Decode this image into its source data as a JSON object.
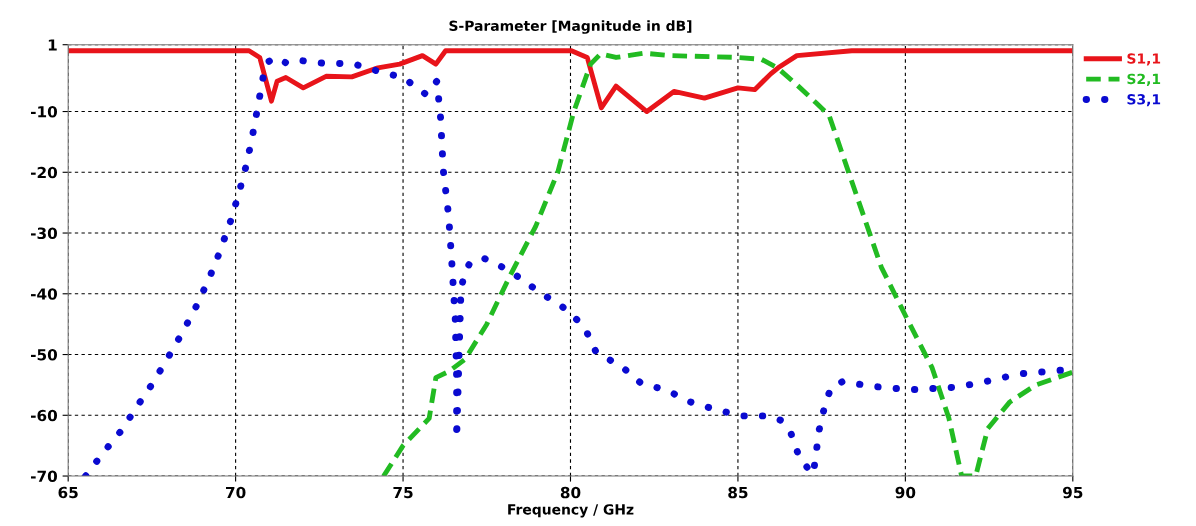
{
  "chart_data": {
    "type": "line",
    "title": "S-Parameter [Magnitude in dB]",
    "xlabel": "Frequency / GHz",
    "xlim": [
      65,
      95
    ],
    "xticks": [
      65,
      70,
      75,
      80,
      85,
      90,
      95
    ],
    "ylim": [
      -70,
      1
    ],
    "yticks": [
      1,
      -10,
      -20,
      -30,
      -40,
      -50,
      -60,
      -70
    ],
    "grid": true,
    "legend": "right",
    "marker": "none",
    "series": [
      {
        "name": "S1,1",
        "color": "#e8141a",
        "line_style": "solid",
        "x": [
          65,
          70.4,
          70.72,
          71.07,
          71.24,
          71.5,
          72.02,
          72.7,
          73.47,
          74.25,
          74.9,
          75.58,
          75.98,
          76.27,
          80.03,
          80.5,
          80.92,
          81.36,
          82.28,
          83.09,
          84.0,
          85.0,
          85.5,
          85.98,
          86.2,
          86.76,
          88.4,
          95
        ],
        "values": [
          0,
          0,
          -1.1,
          -8.3,
          -5,
          -4.4,
          -6.1,
          -4.2,
          -4.3,
          -2.8,
          -2.2,
          -0.8,
          -2.2,
          0,
          0,
          -1.1,
          -9.4,
          -5.8,
          -10,
          -6.7,
          -7.8,
          -6.1,
          -6.4,
          -3.8,
          -2.8,
          -0.8,
          0,
          0
        ]
      },
      {
        "name": "S2,1",
        "color": "#22bb22",
        "line_style": "dashed",
        "x": [
          74.42,
          75.0,
          75.78,
          75.98,
          76.36,
          76.85,
          77.5,
          78.18,
          78.96,
          79.62,
          80.1,
          80.6,
          80.9,
          81.36,
          82.2,
          83.0,
          85.0,
          85.7,
          86.18,
          86.76,
          87.34,
          87.72,
          88.58,
          89.28,
          90.03,
          90.8,
          91.3,
          91.68,
          92.1,
          92.46,
          93.12,
          93.9,
          95
        ],
        "values": [
          -70,
          -65,
          -60.5,
          -53.8,
          -52.8,
          -50.8,
          -45,
          -37.2,
          -28.9,
          -20,
          -10,
          -2.2,
          -0.5,
          -1.1,
          -0.4,
          -0.8,
          -1.1,
          -1.4,
          -2.8,
          -5.6,
          -8.6,
          -10.6,
          -24.4,
          -35.6,
          -43.9,
          -52.2,
          -60.5,
          -70,
          -70,
          -62.2,
          -57.8,
          -55,
          -52.9
        ]
      },
      {
        "name": "S3,1",
        "color": "#0a0ad0",
        "line_style": "dotted",
        "x": [
          65.52,
          66.04,
          66.59,
          67.05,
          67.54,
          67.98,
          68.41,
          68.82,
          69.2,
          69.52,
          69.84,
          70.09,
          70.32,
          70.5,
          70.66,
          70.82,
          70.95,
          71.18,
          71.55,
          71.93,
          72.69,
          73.5,
          73.9,
          74.28,
          75.0,
          75.69,
          76.01,
          76.12,
          76.2,
          76.36,
          76.45,
          76.56,
          76.6,
          76.6,
          76.73,
          76.85,
          77.02,
          77.43,
          78.15,
          79.1,
          79.77,
          80.4,
          80.78,
          81.47,
          82.1,
          82.88,
          83.58,
          84.36,
          85.12,
          85.92,
          86.27,
          86.56,
          86.85,
          87.25,
          87.43,
          87.63,
          87.8,
          88.15,
          88.93,
          90.17,
          91.44,
          92.2,
          93.38,
          94.62,
          95
        ],
        "values": [
          -70,
          -66.2,
          -62.5,
          -58.6,
          -54.6,
          -50.5,
          -46.4,
          -42.1,
          -37.6,
          -33.2,
          -28.2,
          -23.6,
          -18.8,
          -14.1,
          -9.3,
          -4.4,
          -1.9,
          -1.1,
          -2.1,
          -1.6,
          -2.1,
          -2.1,
          -2.8,
          -3.4,
          -4.4,
          -7.2,
          -5,
          -11,
          -19.6,
          -27.1,
          -34.3,
          -44.3,
          -53.8,
          -63.8,
          -39.2,
          -36.4,
          -34.7,
          -34.2,
          -36.1,
          -39.8,
          -42.2,
          -45.3,
          -49.8,
          -51.7,
          -54.7,
          -55.9,
          -57.8,
          -59.1,
          -60.1,
          -60.1,
          -60.8,
          -62.6,
          -67.2,
          -69.7,
          -62.3,
          -57.6,
          -55.3,
          -54.4,
          -55.2,
          -55.8,
          -55.4,
          -54.7,
          -53.2,
          -52.6,
          -52.5
        ]
      }
    ]
  }
}
